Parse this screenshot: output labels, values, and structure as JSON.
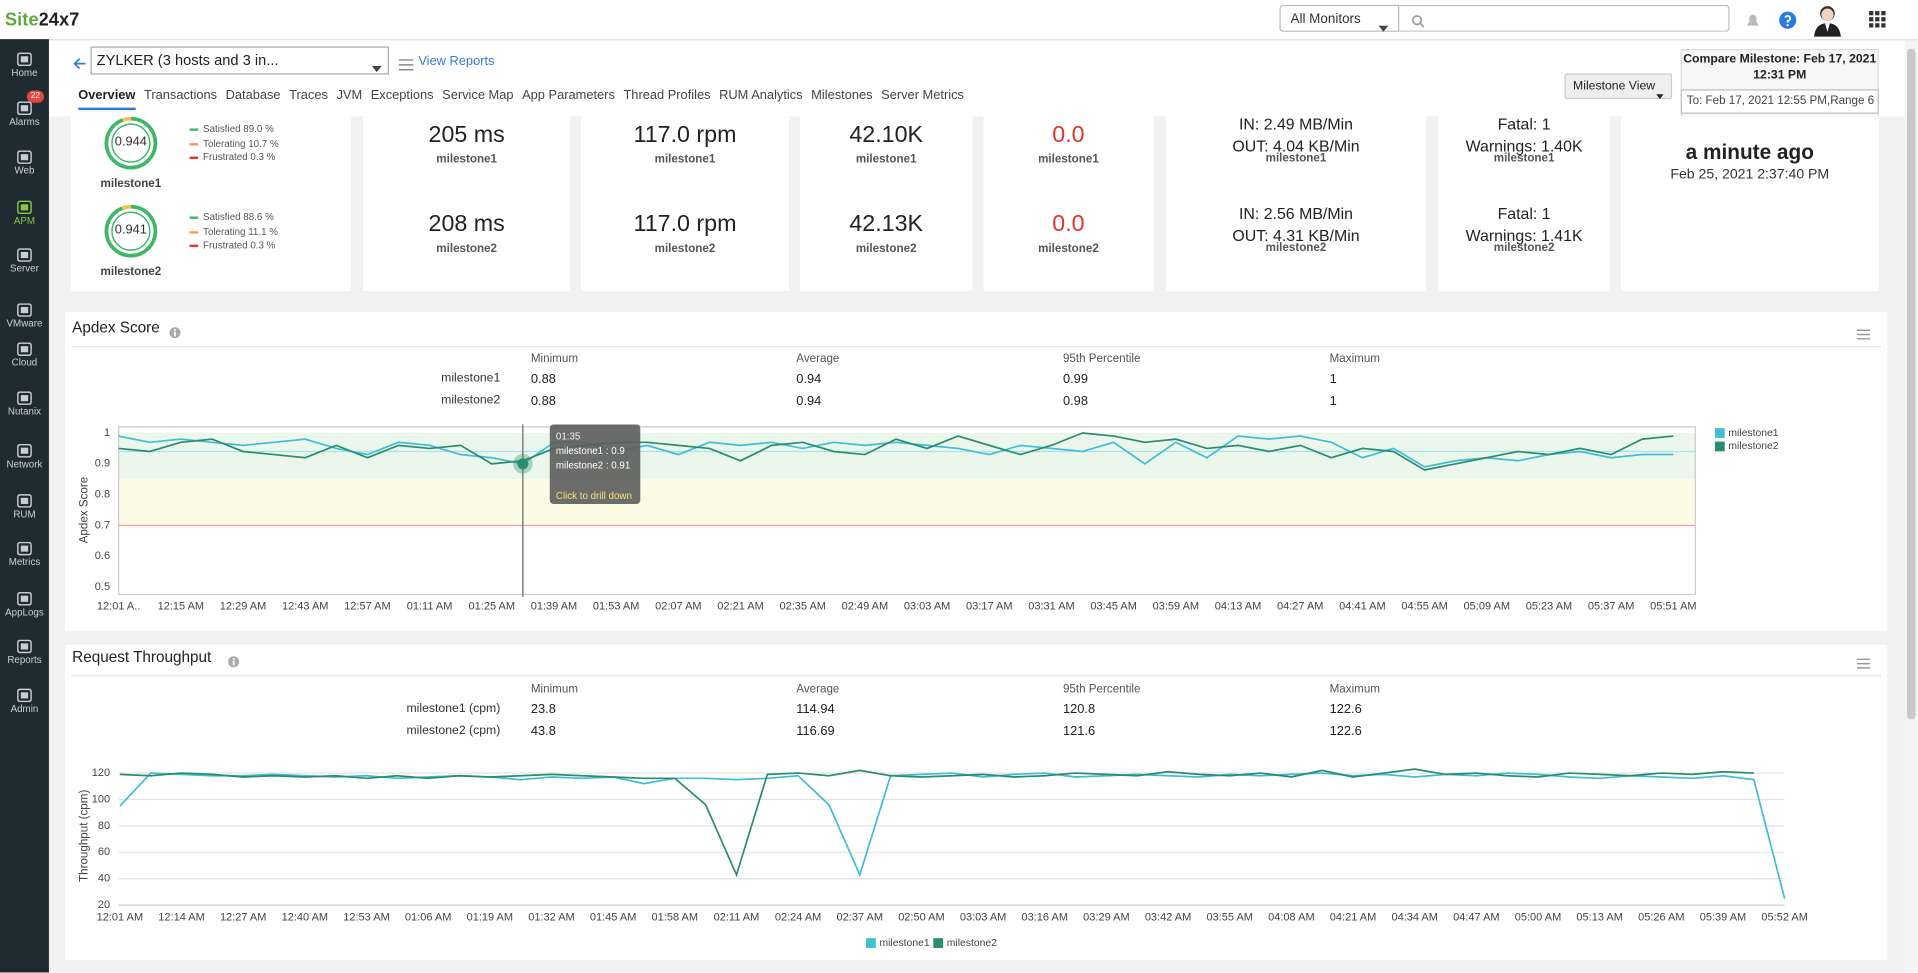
{
  "header": {
    "logo": "Site24x7",
    "monitor_filter": "All Monitors"
  },
  "sidebar": {
    "items": [
      {
        "label": "Home"
      },
      {
        "label": "Alarms",
        "badge": "22"
      },
      {
        "label": "Web"
      },
      {
        "label": "APM"
      },
      {
        "label": "Server"
      },
      {
        "label": "VMware"
      },
      {
        "label": "Cloud"
      },
      {
        "label": "Nutanix"
      },
      {
        "label": "Network"
      },
      {
        "label": "RUM"
      },
      {
        "label": "Metrics"
      },
      {
        "label": "AppLogs"
      },
      {
        "label": "Reports"
      },
      {
        "label": "Admin"
      }
    ],
    "active": "APM"
  },
  "monitor": {
    "name": "ZYLKER (3 hosts and 3 in...",
    "view_reports": "View Reports",
    "tabs": [
      "Overview",
      "Transactions",
      "Database",
      "Traces",
      "JVM",
      "Exceptions",
      "Service Map",
      "App Parameters",
      "Thread Profiles",
      "RUM Analytics",
      "Milestones",
      "Server Metrics"
    ],
    "milestone_view": "Milestone View",
    "compare_title": "Compare Milestone: Feb 17, 2021 12:31 PM",
    "compare_range": "To: Feb 17, 2021 12:55 PM,Range 6"
  },
  "summary": {
    "apdex": [
      {
        "score": 0.944,
        "name": "milestone1",
        "breakdown": [
          "Satisfied 89.0 %",
          "Tolerating 10.7 %",
          "Frustrated 0.3 %"
        ]
      },
      {
        "score": 0.941,
        "name": "milestone2",
        "breakdown": [
          "Satisfied 88.6 %",
          "Tolerating 11.1 %",
          "Frustrated 0.3 %"
        ]
      }
    ],
    "cards": [
      {
        "rows": [
          {
            "lines": [
              "205 ms"
            ],
            "name": "milestone1"
          },
          {
            "lines": [
              "208 ms"
            ],
            "name": "milestone2"
          }
        ]
      },
      {
        "rows": [
          {
            "lines": [
              "117.0 rpm"
            ],
            "name": "milestone1"
          },
          {
            "lines": [
              "117.0 rpm"
            ],
            "name": "milestone2"
          }
        ]
      },
      {
        "rows": [
          {
            "lines": [
              "42.10K"
            ],
            "name": "milestone1"
          },
          {
            "lines": [
              "42.13K"
            ],
            "name": "milestone2"
          }
        ]
      },
      {
        "color": "#e0362b",
        "rows": [
          {
            "lines": [
              "0.0"
            ],
            "name": "milestone1"
          },
          {
            "lines": [
              "0.0"
            ],
            "name": "milestone2"
          }
        ]
      },
      {
        "rows": [
          {
            "lines": [
              "IN: 2.49 MB/Min",
              "OUT: 4.04 KB/Min"
            ],
            "name": "milestone1"
          },
          {
            "lines": [
              "IN: 2.56 MB/Min",
              "OUT: 4.31 KB/Min"
            ],
            "name": "milestone2"
          }
        ]
      },
      {
        "rows": [
          {
            "lines": [
              "Fatal: 1",
              "Warnings: 1.40K"
            ],
            "name": "milestone1"
          },
          {
            "lines": [
              "Fatal: 1",
              "Warnings: 1.41K"
            ],
            "name": "milestone2"
          }
        ]
      }
    ],
    "last_polled": {
      "relative": "a minute ago",
      "time": "Feb 25, 2021 2:37:40 PM"
    }
  },
  "chart_data": [
    {
      "type": "line",
      "title": "Apdex Score",
      "y_label": "Apdex Score",
      "legend": "right",
      "grid": false,
      "plot_border": true,
      "stats": {
        "columns": [
          "Minimum",
          "Average",
          "95th Percentile",
          "Maximum"
        ],
        "rows": [
          {
            "name": "milestone1",
            "values": [
              0.88,
              0.94,
              0.99,
              1
            ]
          },
          {
            "name": "milestone2",
            "values": [
              0.88,
              0.94,
              0.98,
              1
            ]
          }
        ]
      },
      "categories": [
        "12:01 A..",
        null,
        "12:15 AM",
        null,
        "12:29 AM",
        null,
        "12:43 AM",
        null,
        "12:57 AM",
        null,
        "01:11 AM",
        null,
        "01:25 AM",
        null,
        "01:39 AM",
        null,
        "01:53 AM",
        null,
        "02:07 AM",
        null,
        "02:21 AM",
        null,
        "02:35 AM",
        null,
        "02:49 AM",
        null,
        "03:03 AM",
        null,
        "03:17 AM",
        null,
        "03:31 AM",
        null,
        "03:45 AM",
        null,
        "03:59 AM",
        null,
        "04:13 AM",
        null,
        "04:27 AM",
        null,
        "04:41 AM",
        null,
        "04:55 AM",
        null,
        "05:09 AM",
        null,
        "05:23 AM",
        null,
        "05:37 AM",
        null,
        "05:51 AM"
      ],
      "series": [
        {
          "name": "milestone1",
          "color": "#42bdd6",
          "values": [
            0.99,
            0.97,
            0.98,
            0.97,
            0.96,
            0.97,
            0.98,
            0.95,
            0.93,
            0.97,
            0.96,
            0.93,
            0.92,
            0.9,
            0.97,
            0.97,
            0.94,
            0.96,
            0.93,
            0.97,
            0.96,
            0.97,
            0.95,
            0.97,
            0.96,
            0.97,
            0.96,
            0.95,
            0.93,
            0.96,
            0.95,
            0.94,
            0.97,
            0.9,
            0.97,
            0.92,
            0.99,
            0.98,
            0.99,
            0.97,
            0.92,
            0.95,
            0.89,
            0.91,
            0.92,
            0.91,
            0.93,
            0.94,
            0.92,
            0.93,
            0.93
          ]
        },
        {
          "name": "milestone2",
          "color": "#2b8c70",
          "values": [
            0.95,
            0.94,
            0.97,
            0.98,
            0.94,
            0.93,
            0.92,
            0.96,
            0.92,
            0.96,
            0.95,
            0.96,
            0.9,
            0.91,
            0.95,
            0.96,
            0.97,
            0.97,
            0.96,
            0.95,
            0.91,
            0.96,
            0.97,
            0.94,
            0.93,
            0.98,
            0.95,
            0.99,
            0.96,
            0.93,
            0.96,
            1,
            0.99,
            0.97,
            0.98,
            0.95,
            0.96,
            0.94,
            0.96,
            0.92,
            0.95,
            0.94,
            0.88,
            0.9,
            0.92,
            0.94,
            0.93,
            0.95,
            0.93,
            0.98,
            0.99
          ]
        }
      ],
      "ylim": [
        0.5,
        1
      ],
      "yticks": [
        0.5,
        0.6,
        0.7,
        0.8,
        0.9,
        1
      ],
      "zones": [
        {
          "from": 0.85,
          "to": 1,
          "color": "#ecf7ec"
        },
        {
          "from": 0.7,
          "to": 0.85,
          "color": "#fbfbe6"
        }
      ],
      "reference_lines": [
        {
          "value": 0.94,
          "color": "#a9e3ee"
        },
        {
          "value": 0.7,
          "color": "#f2a3a3"
        }
      ],
      "tooltip": {
        "time": "01:35",
        "lines": [
          "milestone1 : 0.9",
          "milestone2 : 0.91"
        ],
        "action": "Click to drill down"
      }
    },
    {
      "type": "line",
      "title": "Request Throughput",
      "y_label": "Throughput (cpm)",
      "legend": "bottom",
      "grid": true,
      "plot_border": false,
      "stats": {
        "columns": [
          "Minimum",
          "Average",
          "95th Percentile",
          "Maximum"
        ],
        "rows": [
          {
            "name": "milestone1 (cpm)",
            "values": [
              23.8,
              114.94,
              120.8,
              122.6
            ]
          },
          {
            "name": "milestone2 (cpm)",
            "values": [
              43.8,
              116.69,
              121.6,
              122.6
            ]
          }
        ]
      },
      "categories": [
        "12:01 AM",
        null,
        "12:14 AM",
        null,
        "12:27 AM",
        null,
        "12:40 AM",
        null,
        "12:53 AM",
        null,
        "01:06 AM",
        null,
        "01:19 AM",
        null,
        "01:32 AM",
        null,
        "01:45 AM",
        null,
        "01:58 AM",
        null,
        "02:11 AM",
        null,
        "02:24 AM",
        null,
        "02:37 AM",
        null,
        "02:50 AM",
        null,
        "03:03 AM",
        null,
        "03:16 AM",
        null,
        "03:29 AM",
        null,
        "03:42 AM",
        null,
        "03:55 AM",
        null,
        "04:08 AM",
        null,
        "04:21 AM",
        null,
        "04:34 AM",
        null,
        "04:47 AM",
        null,
        "05:00 AM",
        null,
        "05:13 AM",
        null,
        "05:26 AM",
        null,
        "05:39 AM",
        null,
        "05:52 AM"
      ],
      "series": [
        {
          "name": "milestone1",
          "color": "#42bdd6",
          "values": [
            95,
            120,
            119,
            118,
            118,
            119,
            118,
            117,
            118,
            116,
            117,
            118,
            117,
            115,
            117,
            116,
            117,
            112,
            116,
            116,
            115,
            116,
            118,
            96,
            43,
            118,
            119,
            120,
            117,
            119,
            120,
            117,
            118,
            119,
            118,
            117,
            119,
            118,
            119,
            120,
            118,
            119,
            117,
            119,
            118,
            120,
            119,
            117,
            116,
            118,
            117,
            116,
            118,
            115,
            25
          ]
        },
        {
          "name": "milestone2",
          "color": "#2b8c70",
          "values": [
            119,
            118,
            120,
            119,
            117,
            118,
            117,
            118,
            116,
            118,
            116,
            118,
            117,
            118,
            119,
            118,
            117,
            116,
            116,
            96,
            43,
            119,
            120,
            118,
            122,
            118,
            117,
            118,
            119,
            117,
            118,
            120,
            119,
            118,
            121,
            119,
            118,
            120,
            117,
            122,
            117,
            120,
            123,
            119,
            120,
            118,
            117,
            120,
            119,
            118,
            120,
            119,
            121,
            120,
            null
          ]
        }
      ],
      "ylim": [
        20,
        125
      ],
      "yticks": [
        20,
        40,
        60,
        80,
        100,
        120
      ]
    }
  ]
}
